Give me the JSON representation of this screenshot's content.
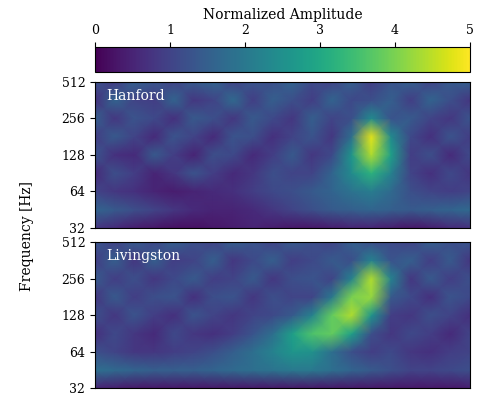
{
  "chart_data": {
    "type": "heatmap",
    "ylabel": "Frequency [Hz]",
    "log": "y",
    "ylim": [
      32,
      512
    ],
    "yticks": [
      32,
      64,
      128,
      256,
      512
    ],
    "tick_labels": "y",
    "colorbar": {
      "label": "Normalized Amplitude",
      "range": [
        0,
        5
      ],
      "ticks": [
        0,
        1,
        2,
        3,
        4,
        5
      ]
    },
    "cell_frequencies": [
      32,
      45,
      64,
      90,
      128,
      181,
      256,
      362,
      512
    ],
    "panels": [
      {
        "name": "Hanford",
        "cells": [
          [
            0.8,
            0.6,
            0.4,
            0.3,
            0.2,
            0.2,
            0.3,
            0.4,
            0.5,
            0.4,
            0.3,
            0.3,
            0.4,
            0.5,
            0.5,
            0.4,
            0.3,
            0.4,
            0.6,
            0.7
          ],
          [
            1.6,
            1.4,
            1.2,
            1.0,
            0.8,
            0.6,
            0.5,
            0.5,
            0.6,
            0.8,
            1.0,
            1.2,
            1.4,
            1.5,
            1.6,
            1.5,
            1.4,
            1.5,
            1.6,
            1.7
          ],
          [
            1.0,
            0.8,
            0.7,
            0.5,
            0.4,
            0.5,
            0.6,
            0.7,
            0.9,
            1.1,
            1.2,
            1.4,
            1.6,
            1.9,
            2.1,
            1.7,
            1.2,
            1.0,
            0.9,
            1.0
          ],
          [
            0.6,
            1.2,
            0.9,
            0.5,
            0.8,
            1.3,
            0.9,
            0.6,
            0.8,
            1.2,
            1.0,
            1.0,
            1.6,
            2.4,
            3.2,
            2.2,
            1.0,
            0.7,
            1.1,
            0.8
          ],
          [
            1.3,
            0.7,
            0.6,
            1.4,
            0.9,
            0.5,
            1.2,
            1.1,
            0.6,
            0.9,
            1.4,
            0.8,
            1.1,
            2.6,
            4.4,
            2.8,
            0.9,
            1.2,
            0.6,
            1.1
          ],
          [
            0.9,
            1.4,
            1.0,
            0.6,
            1.3,
            1.0,
            0.6,
            1.3,
            1.2,
            0.7,
            1.0,
            1.3,
            0.8,
            1.8,
            4.8,
            2.4,
            1.1,
            0.7,
            1.3,
            0.9
          ],
          [
            1.5,
            0.8,
            1.3,
            1.1,
            0.7,
            1.4,
            1.2,
            0.8,
            1.4,
            1.1,
            0.8,
            1.5,
            1.0,
            1.2,
            2.4,
            1.3,
            1.4,
            1.0,
            0.8,
            1.3
          ],
          [
            0.7,
            1.6,
            1.0,
            0.9,
            1.6,
            0.8,
            1.0,
            1.7,
            0.9,
            1.5,
            1.2,
            0.9,
            1.6,
            1.1,
            1.2,
            1.5,
            0.9,
            1.6,
            1.2,
            0.8
          ],
          [
            1.2,
            0.9,
            1.5,
            1.3,
            1.0,
            1.4,
            1.6,
            1.0,
            1.3,
            1.2,
            1.6,
            1.1,
            1.0,
            1.5,
            0.9,
            1.3,
            1.5,
            1.0,
            1.4,
            1.5
          ]
        ]
      },
      {
        "name": "Livingston",
        "cells": [
          [
            0.5,
            0.4,
            0.3,
            0.3,
            0.3,
            0.3,
            0.3,
            0.3,
            0.3,
            0.3,
            0.3,
            0.3,
            0.3,
            0.3,
            0.3,
            0.3,
            0.3,
            0.3,
            0.3,
            0.4
          ],
          [
            1.8,
            1.7,
            1.6,
            1.5,
            1.5,
            1.5,
            1.6,
            1.7,
            1.8,
            1.9,
            2.0,
            2.0,
            1.8,
            1.6,
            1.4,
            1.2,
            1.0,
            1.0,
            1.1,
            1.2
          ],
          [
            1.2,
            1.0,
            0.8,
            0.8,
            0.9,
            1.0,
            1.2,
            1.5,
            1.8,
            2.2,
            2.6,
            2.5,
            1.8,
            1.2,
            0.9,
            1.1,
            0.8,
            0.7,
            0.9,
            1.0
          ],
          [
            0.7,
            1.1,
            0.8,
            0.6,
            1.1,
            0.8,
            0.7,
            0.9,
            1.3,
            1.8,
            2.8,
            3.6,
            3.8,
            2.8,
            1.2,
            0.8,
            1.1,
            0.9,
            0.6,
            1.0
          ],
          [
            1.2,
            0.8,
            1.3,
            0.9,
            0.7,
            1.3,
            1.0,
            0.8,
            1.0,
            1.1,
            1.4,
            2.2,
            3.8,
            4.4,
            2.6,
            0.9,
            0.8,
            1.2,
            1.0,
            0.7
          ],
          [
            0.8,
            1.4,
            0.9,
            1.2,
            1.3,
            0.7,
            1.2,
            1.3,
            0.8,
            1.2,
            1.0,
            1.0,
            2.0,
            4.0,
            4.2,
            1.4,
            1.1,
            0.7,
            1.3,
            1.1
          ],
          [
            1.4,
            0.9,
            1.2,
            0.8,
            1.1,
            1.4,
            0.9,
            1.0,
            1.4,
            0.8,
            1.2,
            1.3,
            1.0,
            2.2,
            4.4,
            2.2,
            0.8,
            1.4,
            0.9,
            1.2
          ],
          [
            0.9,
            1.5,
            0.8,
            1.5,
            0.9,
            1.0,
            1.5,
            0.8,
            1.1,
            1.5,
            0.9,
            1.1,
            1.4,
            1.2,
            2.2,
            1.3,
            1.5,
            0.9,
            1.4,
            0.8
          ],
          [
            1.3,
            1.0,
            1.4,
            1.1,
            1.5,
            1.2,
            1.0,
            1.5,
            1.3,
            1.0,
            1.4,
            1.2,
            1.0,
            1.5,
            1.2,
            1.1,
            1.0,
            1.5,
            1.2,
            1.3
          ]
        ]
      }
    ]
  }
}
